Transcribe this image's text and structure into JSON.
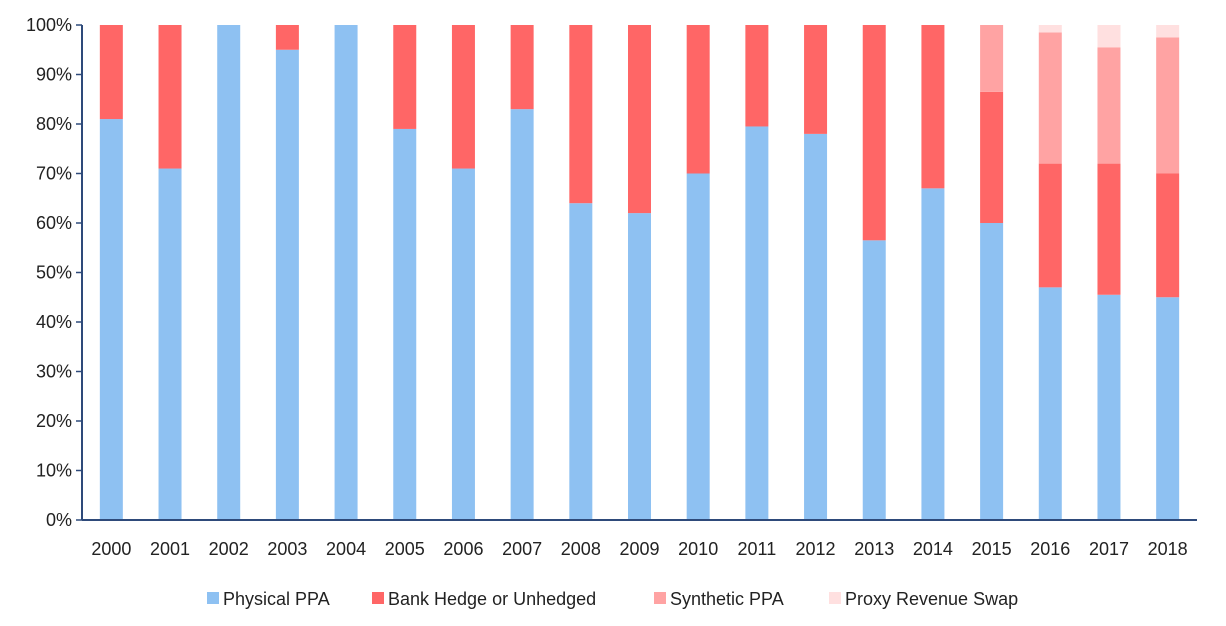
{
  "chart_data": {
    "type": "bar",
    "stacked": true,
    "categories": [
      "2000",
      "2001",
      "2002",
      "2003",
      "2004",
      "2005",
      "2006",
      "2007",
      "2008",
      "2009",
      "2010",
      "2011",
      "2012",
      "2013",
      "2014",
      "2015",
      "2016",
      "2017",
      "2018"
    ],
    "series": [
      {
        "name": "Physical PPA",
        "color": "#8ec1f2",
        "values": [
          81,
          71,
          100,
          95,
          100,
          79,
          71,
          83,
          64,
          62,
          70,
          79.5,
          78,
          56.5,
          67,
          60,
          47,
          45.5,
          45
        ]
      },
      {
        "name": "Bank Hedge or Unhedged",
        "color": "#ff6666",
        "values": [
          19,
          29,
          0,
          5,
          0,
          21,
          29,
          17,
          36,
          38,
          30,
          20.5,
          22,
          43.5,
          33,
          26.5,
          25,
          26.5,
          25
        ]
      },
      {
        "name": "Synthetic PPA",
        "color": "#ffa3a3",
        "values": [
          0,
          0,
          0,
          0,
          0,
          0,
          0,
          0,
          0,
          0,
          0,
          0,
          0,
          0,
          0,
          13.5,
          26.5,
          23.5,
          27.5
        ]
      },
      {
        "name": "Proxy Revenue Swap",
        "color": "#ffe0e0",
        "values": [
          0,
          0,
          0,
          0,
          0,
          0,
          0,
          0,
          0,
          0,
          0,
          0,
          0,
          0,
          0,
          0,
          1.5,
          4.5,
          2.5
        ]
      }
    ],
    "y_ticks": [
      "0%",
      "10%",
      "20%",
      "30%",
      "40%",
      "50%",
      "60%",
      "70%",
      "80%",
      "90%",
      "100%"
    ],
    "ylim": [
      0,
      100
    ],
    "grid": false,
    "legend_position": "bottom"
  }
}
